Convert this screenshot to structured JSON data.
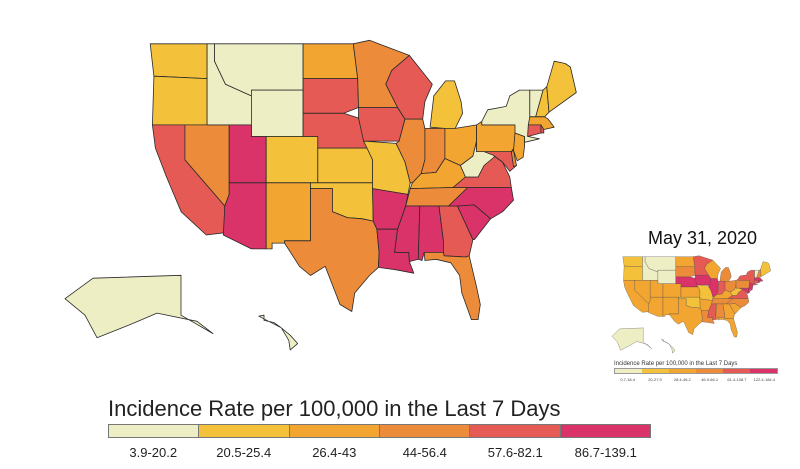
{
  "legend": {
    "title": "Incidence Rate per 100,000 in the Last 7 Days",
    "bins": [
      {
        "label": "3.9-20.2",
        "color": "#eeeec4"
      },
      {
        "label": "20.5-25.4",
        "color": "#f3c23a"
      },
      {
        "label": "26.4-43",
        "color": "#f2a531"
      },
      {
        "label": "44-56.4",
        "color": "#ec8c3a"
      },
      {
        "label": "57.6-82.1",
        "color": "#e65a55"
      },
      {
        "label": "86.7-139.1",
        "color": "#d9336a"
      }
    ]
  },
  "inset": {
    "date": "May 31, 2020",
    "legend_title": "Incidence Rate per 100,000 in the Last 7 Days",
    "bins": [
      {
        "label": "0.7-18.4",
        "color": "#eeeec4"
      },
      {
        "label": "20-27.9",
        "color": "#f3c23a"
      },
      {
        "label": "28.4-46.2",
        "color": "#f2a531"
      },
      {
        "label": "46.9-66.1",
        "color": "#ec8c3a"
      },
      {
        "label": "61.4-108.7",
        "color": "#e65a55"
      },
      {
        "label": "122.4-184.4",
        "color": "#d9336a"
      }
    ]
  },
  "map_data": {
    "bin_order": [
      "3.9-20.2",
      "20.5-25.4",
      "26.4-43",
      "44-56.4",
      "57.6-82.1",
      "86.7-139.1"
    ],
    "states": {
      "WA": 1,
      "OR": 1,
      "CA": 4,
      "NV": 3,
      "ID": 0,
      "MT": 0,
      "WY": 0,
      "UT": 5,
      "AZ": 5,
      "CO": 1,
      "NM": 2,
      "ND": 2,
      "SD": 4,
      "NE": 4,
      "KS": 1,
      "OK": 1,
      "TX": 3,
      "MN": 3,
      "IA": 4,
      "MO": 1,
      "AR": 5,
      "LA": 5,
      "WI": 4,
      "IL": 3,
      "MI": 1,
      "IN": 3,
      "OH": 2,
      "KY": 2,
      "TN": 3,
      "MS": 5,
      "AL": 5,
      "GA": 4,
      "FL": 3,
      "SC": 5,
      "NC": 5,
      "VA": 4,
      "WV": 0,
      "PA": 2,
      "NY": 0,
      "VT": 0,
      "NH": 1,
      "ME": 1,
      "MA": 2,
      "CT": 4,
      "RI": 4,
      "NJ": 2,
      "DE": 3,
      "MD": 4,
      "AK": 0,
      "HI": 0
    },
    "inset_states": {
      "WA": 1,
      "OR": 1,
      "CA": 2,
      "NV": 2,
      "ID": 0,
      "MT": 0,
      "WY": 0,
      "UT": 2,
      "AZ": 2,
      "CO": 2,
      "NM": 2,
      "ND": 2,
      "SD": 3,
      "NE": 5,
      "KS": 2,
      "OK": 1,
      "TX": 2,
      "MN": 4,
      "IA": 5,
      "MO": 1,
      "AR": 2,
      "LA": 3,
      "WI": 2,
      "IL": 5,
      "MI": 3,
      "IN": 4,
      "OH": 3,
      "KY": 2,
      "TN": 3,
      "MS": 4,
      "AL": 3,
      "GA": 2,
      "FL": 2,
      "SC": 2,
      "NC": 3,
      "VA": 4,
      "WV": 1,
      "PA": 3,
      "NY": 4,
      "VT": 0,
      "NH": 3,
      "ME": 1,
      "MA": 5,
      "CT": 4,
      "RI": 5,
      "NJ": 5,
      "DE": 5,
      "MD": 5,
      "AK": 0,
      "HI": 0
    }
  }
}
